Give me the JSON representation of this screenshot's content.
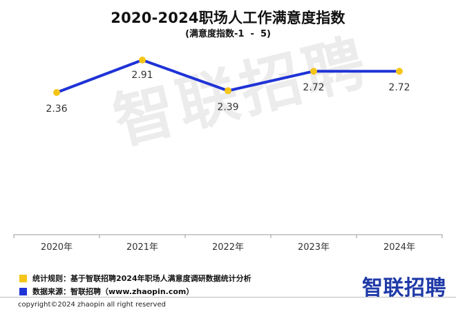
{
  "header": {
    "title": "2020-2024职场人工作满意度指数",
    "subtitle": "(满意度指数-1  -  5)"
  },
  "watermark": "智联招聘",
  "legend": [
    {
      "label": "统计规则：基于智联招聘2024年职场人满意度调研数据统计分析",
      "color": "#f5c518"
    },
    {
      "label": "数据来源：智联招聘（www.zhaopin.com）",
      "color": "#1f33d6"
    }
  ],
  "brand": "智联招聘",
  "copyright": "copyright©2024 zhaopin all right reserved",
  "colors": {
    "line": "#1f33d6",
    "marker": "#f5c518",
    "axis": "#999999"
  },
  "chart_data": {
    "type": "line",
    "categories": [
      "2020年",
      "2021年",
      "2022年",
      "2023年",
      "2024年"
    ],
    "series": [
      {
        "values": [
          2.36,
          2.91,
          2.39,
          2.72,
          2.72
        ]
      }
    ],
    "data_labels": [
      "2.36",
      "2.91",
      "2.39",
      "2.72",
      "2.72"
    ],
    "title": "2020-2024职场人工作满意度指数",
    "subtitle": "(满意度指数-1  -  5)",
    "xlabel": "",
    "ylabel": "",
    "grid": false,
    "legend": "none"
  }
}
